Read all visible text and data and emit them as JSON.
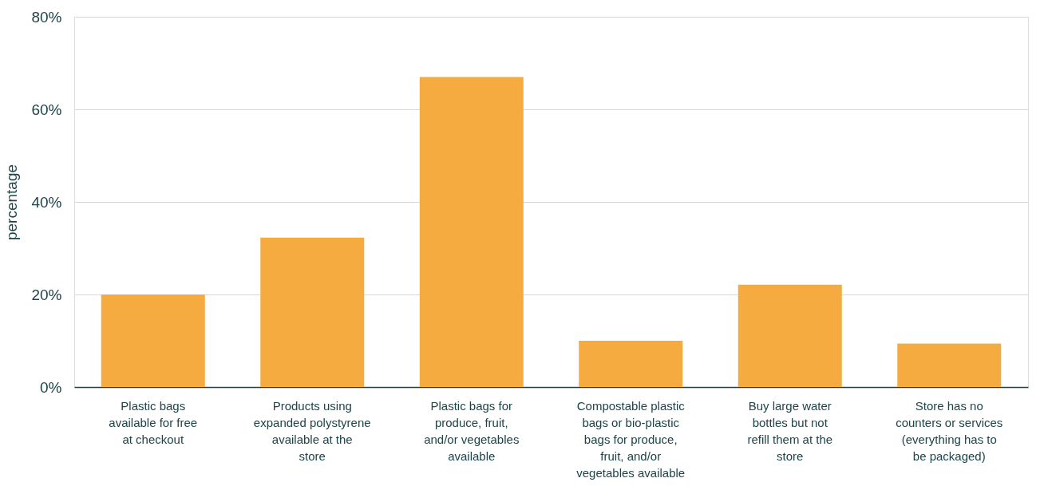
{
  "chart_data": {
    "type": "bar",
    "ylabel": "percentage",
    "categories": [
      "Plastic bags available for free at checkout",
      "Products using expanded polystyrene available at the store",
      "Plastic bags for produce, fruit, and/or vegetables available",
      "Compostable plastic bags or bio-plastic bags for produce, fruit, and/or vegetables available",
      "Buy large water bottles but not refill them at the store",
      "Store has no counters or services (everything has to be packaged)"
    ],
    "values": [
      20,
      32.3,
      67,
      10,
      22.1,
      9.4
    ],
    "color": "#f5ab40",
    "ylim": [
      0,
      80
    ],
    "yticks": [
      {
        "value": 0,
        "label": "0%"
      },
      {
        "value": 20,
        "label": "20%"
      },
      {
        "value": 40,
        "label": "40%"
      },
      {
        "value": 60,
        "label": "60%"
      },
      {
        "value": 80,
        "label": "80%"
      }
    ],
    "grid": "y"
  }
}
